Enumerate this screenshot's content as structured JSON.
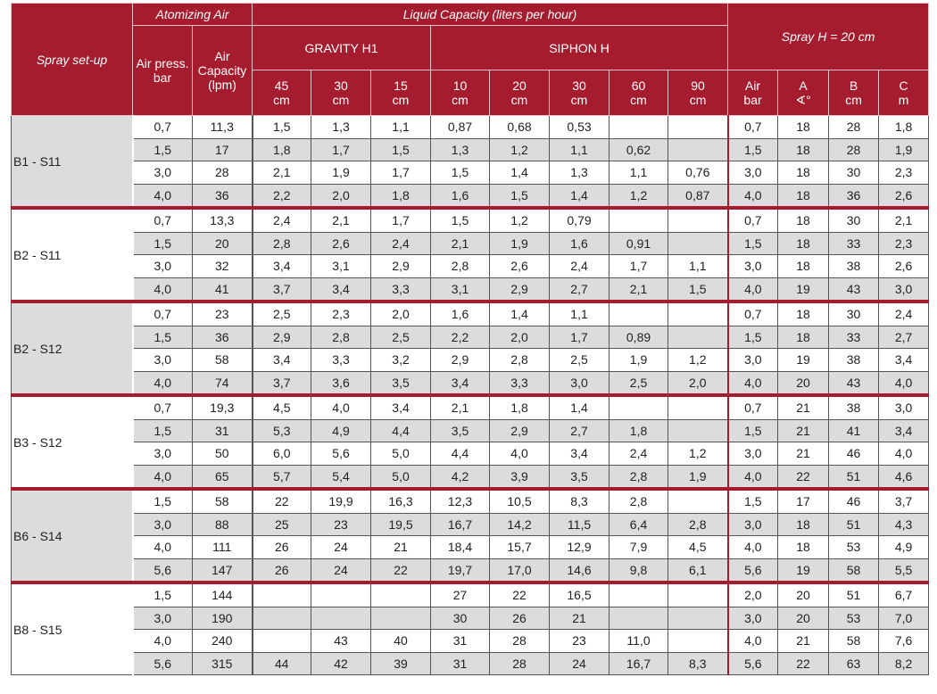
{
  "header": {
    "setup": "Spray set-up",
    "atomizing": "Atomizing Air",
    "liquid": "Liquid Capacity (liters per hour)",
    "spray": "Spray H = 20 cm",
    "air_press": "Air press. bar",
    "air_cap": "Air Capacity (lpm)",
    "gravity": "GRAVITY H1",
    "siphon": "SIPHON H",
    "cols": [
      "45 cm",
      "30 cm",
      "15 cm",
      "10 cm",
      "20 cm",
      "30 cm",
      "60 cm",
      "90 cm",
      "Air bar",
      "A ∢°",
      "B cm",
      "C m"
    ]
  },
  "groups": [
    {
      "name": "B1 - S11",
      "rows": [
        [
          "0,7",
          "11,3",
          "1,5",
          "1,3",
          "1,1",
          "0,87",
          "0,68",
          "0,53",
          "",
          "",
          "0,7",
          "18",
          "28",
          "1,8"
        ],
        [
          "1,5",
          "17",
          "1,8",
          "1,7",
          "1,5",
          "1,3",
          "1,2",
          "1,1",
          "0,62",
          "",
          "1,5",
          "18",
          "28",
          "1,9"
        ],
        [
          "3,0",
          "28",
          "2,1",
          "1,9",
          "1,7",
          "1,5",
          "1,4",
          "1,3",
          "1,1",
          "0,76",
          "3,0",
          "18",
          "30",
          "2,3"
        ],
        [
          "4,0",
          "36",
          "2,2",
          "2,0",
          "1,8",
          "1,6",
          "1,5",
          "1,4",
          "1,2",
          "0,87",
          "4,0",
          "18",
          "36",
          "2,6"
        ]
      ]
    },
    {
      "name": "B2 - S11",
      "rows": [
        [
          "0,7",
          "13,3",
          "2,4",
          "2,1",
          "1,7",
          "1,5",
          "1,2",
          "0,79",
          "",
          "",
          "0,7",
          "18",
          "30",
          "2,1"
        ],
        [
          "1,5",
          "20",
          "2,8",
          "2,6",
          "2,4",
          "2,1",
          "1,9",
          "1,6",
          "0,91",
          "",
          "1,5",
          "18",
          "33",
          "2,3"
        ],
        [
          "3,0",
          "32",
          "3,4",
          "3,1",
          "2,9",
          "2,8",
          "2,6",
          "2,4",
          "1,7",
          "1,1",
          "3,0",
          "18",
          "38",
          "2,6"
        ],
        [
          "4,0",
          "41",
          "3,7",
          "3,4",
          "3,3",
          "3,1",
          "2,9",
          "2,7",
          "2,1",
          "1,5",
          "4,0",
          "19",
          "43",
          "3,0"
        ]
      ]
    },
    {
      "name": "B2 - S12",
      "rows": [
        [
          "0,7",
          "23",
          "2,5",
          "2,3",
          "2,0",
          "1,6",
          "1,4",
          "1,1",
          "",
          "",
          "0,7",
          "18",
          "30",
          "2,4"
        ],
        [
          "1,5",
          "36",
          "2,9",
          "2,8",
          "2,5",
          "2,2",
          "2,0",
          "1,7",
          "0,89",
          "",
          "1,5",
          "18",
          "33",
          "2,7"
        ],
        [
          "3,0",
          "58",
          "3,4",
          "3,3",
          "3,2",
          "2,9",
          "2,8",
          "2,5",
          "1,9",
          "1,2",
          "3,0",
          "19",
          "38",
          "3,4"
        ],
        [
          "4,0",
          "74",
          "3,7",
          "3,6",
          "3,5",
          "3,4",
          "3,3",
          "3,0",
          "2,5",
          "2,0",
          "4,0",
          "20",
          "43",
          "4,0"
        ]
      ]
    },
    {
      "name": "B3 - S12",
      "rows": [
        [
          "0,7",
          "19,3",
          "4,5",
          "4,0",
          "3,4",
          "2,1",
          "1,8",
          "1,4",
          "",
          "",
          "0,7",
          "21",
          "38",
          "3,0"
        ],
        [
          "1,5",
          "31",
          "5,3",
          "4,9",
          "4,4",
          "3,5",
          "2,9",
          "2,7",
          "1,8",
          "",
          "1,5",
          "21",
          "41",
          "3,4"
        ],
        [
          "3,0",
          "50",
          "6,0",
          "5,6",
          "5,0",
          "4,4",
          "4,0",
          "3,4",
          "2,4",
          "1,2",
          "3,0",
          "21",
          "46",
          "4,0"
        ],
        [
          "4,0",
          "65",
          "5,7",
          "5,4",
          "5,0",
          "4,2",
          "3,9",
          "3,5",
          "2,8",
          "1,9",
          "4,0",
          "22",
          "51",
          "4,6"
        ]
      ]
    },
    {
      "name": "B6 - S14",
      "rows": [
        [
          "1,5",
          "58",
          "22",
          "19,9",
          "16,3",
          "12,3",
          "10,5",
          "8,3",
          "2,8",
          "",
          "1,5",
          "17",
          "46",
          "3,7"
        ],
        [
          "3,0",
          "88",
          "25",
          "23",
          "19,5",
          "16,7",
          "14,2",
          "11,5",
          "6,4",
          "2,8",
          "3,0",
          "18",
          "51",
          "4,3"
        ],
        [
          "4,0",
          "111",
          "26",
          "24",
          "21",
          "18,4",
          "15,7",
          "12,9",
          "7,9",
          "4,5",
          "4,0",
          "18",
          "53",
          "4,9"
        ],
        [
          "5,6",
          "147",
          "26",
          "24",
          "22",
          "19,7",
          "17,0",
          "14,6",
          "9,8",
          "6,1",
          "5,6",
          "19",
          "58",
          "5,5"
        ]
      ]
    },
    {
      "name": "B8 - S15",
      "rows": [
        [
          "1,5",
          "144",
          "",
          "",
          "",
          "27",
          "22",
          "16,5",
          "",
          "",
          "2,0",
          "20",
          "51",
          "6,7"
        ],
        [
          "3,0",
          "190",
          "",
          "",
          "",
          "30",
          "26",
          "21",
          "",
          "",
          "3,0",
          "20",
          "53",
          "7,0"
        ],
        [
          "4,0",
          "240",
          "",
          "43",
          "40",
          "31",
          "28",
          "23",
          "11,0",
          "",
          "4,0",
          "21",
          "58",
          "7,6"
        ],
        [
          "5,6",
          "315",
          "44",
          "42",
          "39",
          "31",
          "28",
          "24",
          "16,7",
          "8,3",
          "5,6",
          "22",
          "63",
          "8,2"
        ]
      ]
    }
  ]
}
